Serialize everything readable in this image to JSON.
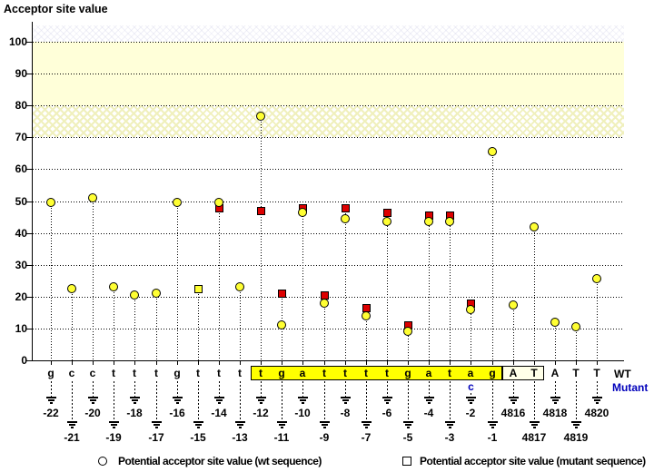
{
  "title": "Acceptor site value",
  "chart_data": {
    "type": "scatter",
    "title": "Acceptor site value",
    "ylabel": "Acceptor site value",
    "ylim": [
      0,
      110
    ],
    "yticks": [
      0,
      10,
      20,
      30,
      40,
      50,
      60,
      70,
      80,
      90,
      100
    ],
    "grid": "dotted horizontal lines at each y tick",
    "shaded_bands": [
      {
        "from": 80,
        "to": 100,
        "style": "solid pale yellow"
      },
      {
        "from": 70,
        "to": 80,
        "style": "crosshatched pale yellow"
      }
    ],
    "series": [
      {
        "name": "Potential acceptor site value (wt sequence)",
        "marker": "circle",
        "color": "#ffff33"
      },
      {
        "name": "Potential acceptor site value (mutant sequence)",
        "marker": "square",
        "color": "#dd0000"
      }
    ],
    "points": [
      {
        "base": "g",
        "pos": "-22",
        "wt": 49.5
      },
      {
        "base": "c",
        "pos": "-21",
        "wt": 22.5
      },
      {
        "base": "c",
        "pos": "-20",
        "wt": 51
      },
      {
        "base": "t",
        "pos": "-19",
        "wt": 23
      },
      {
        "base": "t",
        "pos": "-18",
        "wt": 20.5
      },
      {
        "base": "t",
        "pos": "-17",
        "wt": 21
      },
      {
        "base": "g",
        "pos": "-16",
        "wt": 49.5
      },
      {
        "base": "t",
        "pos": "-15",
        "wt": 22.5,
        "wt_shape": "square"
      },
      {
        "base": "t",
        "pos": "-14",
        "wt": 49.5,
        "mut": 48
      },
      {
        "base": "t",
        "pos": "-13",
        "wt": 23
      },
      {
        "base": "t",
        "pos": "-12",
        "wt": 76.5,
        "mut": 47
      },
      {
        "base": "g",
        "pos": "-11",
        "wt": 11,
        "mut": 21
      },
      {
        "base": "a",
        "pos": "-10",
        "wt": 46.5,
        "mut": 48
      },
      {
        "base": "t",
        "pos": "-9",
        "wt": 18,
        "mut": 20.5
      },
      {
        "base": "t",
        "pos": "-8",
        "wt": 44.5,
        "mut": 48
      },
      {
        "base": "t",
        "pos": "-7",
        "wt": 14,
        "mut": 16.5
      },
      {
        "base": "t",
        "pos": "-6",
        "wt": 43.5,
        "mut": 46.5
      },
      {
        "base": "g",
        "pos": "-5",
        "wt": 9,
        "mut": 11
      },
      {
        "base": "a",
        "pos": "-4",
        "wt": 43.5,
        "mut": 45.5
      },
      {
        "base": "t",
        "pos": "-3",
        "wt": 43.5,
        "mut": 45.5
      },
      {
        "base": "a",
        "pos": "-2",
        "wt": 16,
        "mut": 18
      },
      {
        "base": "g",
        "pos": "-1",
        "wt": 65.5
      },
      {
        "base": "A",
        "pos": "4816",
        "wt": 17.5
      },
      {
        "base": "T",
        "pos": "4817",
        "wt": 42
      },
      {
        "base": "A",
        "pos": "4818",
        "wt": 12
      },
      {
        "base": "T",
        "pos": "4819",
        "wt": 10.5
      },
      {
        "base": "T",
        "pos": "4820",
        "wt": 25.5
      }
    ],
    "highlight_box": {
      "from_pos": "-12",
      "to_pos": "-1",
      "color": "#ffff00"
    },
    "exon_box": {
      "from_pos": "4816",
      "to_pos": "4817",
      "color": "#ffffe8"
    },
    "mutation": {
      "pos": "-2",
      "wt_base": "a",
      "mutant_base": "c"
    }
  },
  "row_labels": {
    "wt": "WT",
    "mutant": "Mutant"
  },
  "legend": {
    "wt": {
      "label": "Potential acceptor site value (wt sequence)",
      "text_color": "#000000"
    },
    "mutant": {
      "label": "Potential acceptor site value (mutant sequence)",
      "text_color": "#cc0000"
    }
  },
  "colors": {
    "wt_marker": "#ffff33",
    "mutant_marker": "#dd0000",
    "highlight_box": "#ffff00",
    "exon_box": "#ffffe8",
    "mutant_text": "#0000bb",
    "band_solid": "#ffffd9"
  }
}
